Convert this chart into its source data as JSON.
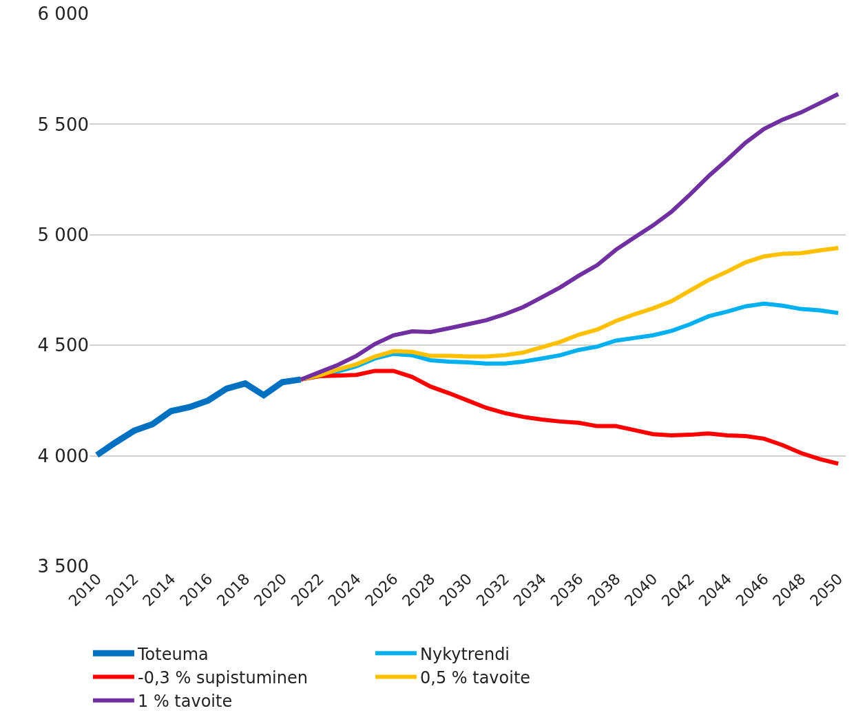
{
  "chart_data": {
    "type": "line",
    "xlim": [
      2009.6,
      2050.4
    ],
    "xticks": [
      2010,
      2012,
      2014,
      2016,
      2018,
      2020,
      2022,
      2024,
      2026,
      2028,
      2030,
      2032,
      2034,
      2036,
      2038,
      2040,
      2042,
      2044,
      2046,
      2048,
      2050
    ],
    "ylim": [
      3500,
      6000
    ],
    "yticks": [
      {
        "value": 3500,
        "label": "3 500"
      },
      {
        "value": 4000,
        "label": "4 000"
      },
      {
        "value": 4500,
        "label": "4 500"
      },
      {
        "value": 5000,
        "label": "5 000"
      },
      {
        "value": 5500,
        "label": "5 500"
      },
      {
        "value": 6000,
        "label": "6 000"
      }
    ],
    "grid": "y",
    "legend": "bottom",
    "line_style": "solid",
    "marker": "none",
    "series": [
      {
        "name": "Toteuma",
        "color": "#0070c0",
        "x": [
          2010,
          2011,
          2012,
          2013,
          2014,
          2015,
          2016,
          2017,
          2018,
          2019,
          2020,
          2021
        ],
        "values": [
          4003,
          4060,
          4113,
          4143,
          4202,
          4220,
          4250,
          4304,
          4327,
          4274,
          4333,
          4345
        ]
      },
      {
        "name": "Nykytrendi",
        "color": "#00b0f0",
        "x": [
          2021,
          2022,
          2023,
          2024,
          2025,
          2026,
          2027,
          2028,
          2029,
          2030,
          2031,
          2032,
          2033,
          2034,
          2035,
          2036,
          2037,
          2038,
          2039,
          2040,
          2041,
          2042,
          2043,
          2044,
          2045,
          2046,
          2047,
          2048,
          2049,
          2050
        ],
        "values": [
          4345,
          4360,
          4381,
          4405,
          4440,
          4461,
          4455,
          4432,
          4426,
          4423,
          4417,
          4417,
          4426,
          4440,
          4455,
          4479,
          4494,
          4521,
          4533,
          4545,
          4565,
          4595,
          4631,
          4652,
          4676,
          4688,
          4679,
          4664,
          4658,
          4646
        ]
      },
      {
        "name": "-0,3 % supistuminen",
        "color": "#ff0000",
        "x": [
          2021,
          2022,
          2023,
          2024,
          2025,
          2026,
          2027,
          2028,
          2029,
          2030,
          2031,
          2032,
          2033,
          2034,
          2035,
          2036,
          2037,
          2038,
          2039,
          2040,
          2041,
          2042,
          2043,
          2044,
          2045,
          2046,
          2047,
          2048,
          2049,
          2050
        ],
        "values": [
          4345,
          4360,
          4363,
          4366,
          4384,
          4384,
          4357,
          4313,
          4283,
          4250,
          4217,
          4193,
          4176,
          4164,
          4155,
          4149,
          4134,
          4134,
          4116,
          4098,
          4092,
          4095,
          4101,
          4092,
          4089,
          4077,
          4048,
          4012,
          3985,
          3964
        ]
      },
      {
        "name": "0,5 % tavoite",
        "color": "#ffc000",
        "x": [
          2021,
          2022,
          2023,
          2024,
          2025,
          2026,
          2027,
          2028,
          2029,
          2030,
          2031,
          2032,
          2033,
          2034,
          2035,
          2036,
          2037,
          2038,
          2039,
          2040,
          2041,
          2042,
          2043,
          2044,
          2045,
          2046,
          2047,
          2048,
          2049,
          2050
        ],
        "values": [
          4345,
          4363,
          4390,
          4414,
          4449,
          4473,
          4470,
          4452,
          4452,
          4449,
          4449,
          4455,
          4467,
          4491,
          4515,
          4548,
          4571,
          4610,
          4640,
          4667,
          4699,
          4747,
          4795,
          4833,
          4875,
          4902,
          4914,
          4917,
          4929,
          4940
        ]
      },
      {
        "name": "1 % tavoite",
        "color": "#7030a0",
        "x": [
          2021,
          2022,
          2023,
          2024,
          2025,
          2026,
          2027,
          2028,
          2029,
          2030,
          2031,
          2032,
          2033,
          2034,
          2035,
          2036,
          2037,
          2038,
          2039,
          2040,
          2041,
          2042,
          2043,
          2044,
          2045,
          2046,
          2047,
          2048,
          2049,
          2050
        ],
        "values": [
          4345,
          4378,
          4411,
          4452,
          4506,
          4545,
          4563,
          4560,
          4577,
          4595,
          4613,
          4640,
          4673,
          4717,
          4762,
          4815,
          4863,
          4932,
          4988,
          5042,
          5104,
          5182,
          5265,
          5339,
          5417,
          5479,
          5521,
          5554,
          5595,
          5637
        ]
      }
    ]
  }
}
